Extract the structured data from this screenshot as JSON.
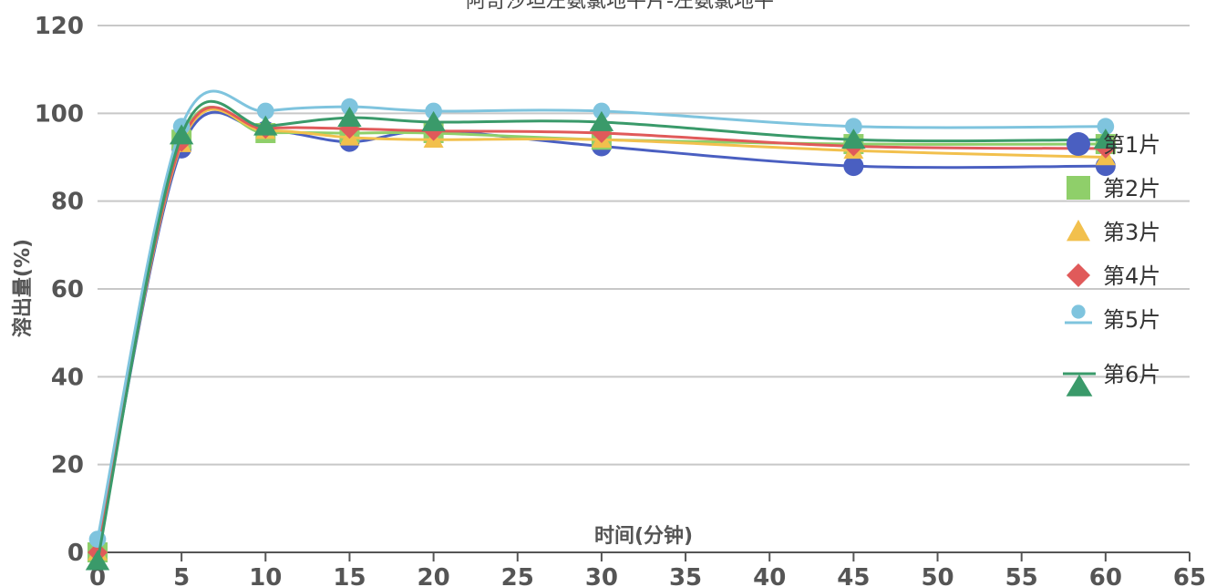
{
  "chart_data": {
    "type": "line",
    "title": "阿奇沙坦左氨氯地平片-左氨氯地平",
    "xlabel": "时间(分钟)",
    "ylabel": "溶出量(%)",
    "xlim": [
      0,
      65
    ],
    "ylim": [
      0,
      120
    ],
    "x_ticks": [
      0,
      5,
      10,
      15,
      20,
      25,
      30,
      35,
      40,
      45,
      50,
      55,
      60,
      65
    ],
    "y_ticks": [
      0,
      20,
      40,
      60,
      80,
      100,
      120
    ],
    "grid": true,
    "legend_position": "right",
    "x": [
      0,
      5,
      10,
      15,
      20,
      30,
      45,
      60
    ],
    "series": [
      {
        "name": "第1片",
        "color": "#4a5fc1",
        "marker": "circle",
        "values": [
          0,
          92,
          96,
          93.5,
          96,
          92.5,
          88,
          88
        ]
      },
      {
        "name": "第2片",
        "color": "#8fcf6a",
        "marker": "square",
        "values": [
          0,
          94,
          95.5,
          95.5,
          95.5,
          94,
          93,
          93
        ]
      },
      {
        "name": "第3片",
        "color": "#f2c04d",
        "marker": "triangle",
        "values": [
          0,
          93,
          96,
          94.5,
          94,
          94,
          91.5,
          90
        ]
      },
      {
        "name": "第4片",
        "color": "#e05a5a",
        "marker": "diamond",
        "values": [
          0,
          93.5,
          96.5,
          96.5,
          96,
          95.5,
          92.5,
          92
        ]
      },
      {
        "name": "第5片",
        "color": "#7fc4de",
        "marker": "pin",
        "values": [
          3,
          97,
          100.5,
          101.5,
          100.5,
          100.5,
          97,
          97
        ]
      },
      {
        "name": "第6片",
        "color": "#3a9a6a",
        "marker": "triangle-down",
        "values": [
          -2,
          95,
          97,
          99,
          98,
          98,
          94,
          94
        ]
      }
    ]
  }
}
